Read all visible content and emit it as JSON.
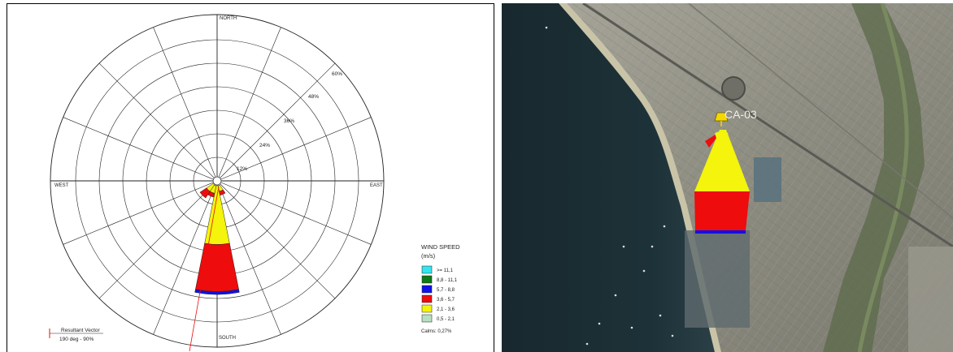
{
  "chart_data": {
    "type": "wind-rose",
    "directions": {
      "north": "NORTH",
      "south": "SOUTH",
      "east": "EAST",
      "west": "WEST"
    },
    "rings": [
      "12%",
      "24%",
      "36%",
      "48%",
      "60%"
    ],
    "sectors": 16,
    "speed_bins": [
      {
        "label": ">= 11,1",
        "color": "#33e6ee"
      },
      {
        "label": "8,8 - 11,1",
        "color": "#0c7a16"
      },
      {
        "label": "5,7 - 8,8",
        "color": "#1010e8"
      },
      {
        "label": "3,6 - 5,7",
        "color": "#ee0c0c"
      },
      {
        "label": "2,1 - 3,6",
        "color": "#f4f40c"
      },
      {
        "label": "0,5 - 2,1",
        "color": "#b8e0c0"
      }
    ],
    "petals": [
      {
        "direction_deg": 180,
        "segments": [
          {
            "bin": "2,1 - 3,6",
            "value": 30
          },
          {
            "bin": "3,6 - 5,7",
            "value": 24
          },
          {
            "bin": "5,7 - 8,8",
            "value": 1.5
          }
        ]
      },
      {
        "direction_deg": 202.5,
        "segments": [
          {
            "bin": "2,1 - 3,6",
            "value": 4
          },
          {
            "bin": "3,6 - 5,7",
            "value": 2
          }
        ]
      },
      {
        "direction_deg": 225,
        "segments": [
          {
            "bin": "2,1 - 3,6",
            "value": 4
          },
          {
            "bin": "3,6 - 5,7",
            "value": 4
          }
        ]
      },
      {
        "direction_deg": 157.5,
        "segments": [
          {
            "bin": "2,1 - 3,6",
            "value": 3
          },
          {
            "bin": "3,6 - 5,7",
            "value": 2
          }
        ]
      }
    ],
    "legend": {
      "title": "WIND SPEED",
      "unit": "(m/s)",
      "calms": "Calms: 0,27%"
    },
    "resultant": {
      "label": "Resultant Vector",
      "value": "190 deg - 90%"
    }
  },
  "map": {
    "marker_label": "CA-03"
  },
  "colors": {
    "yellow": "#f4f40c",
    "red": "#ee0c0c",
    "blue": "#1010e8",
    "ocean": "#1a2d33",
    "land": "#8a8a80"
  }
}
